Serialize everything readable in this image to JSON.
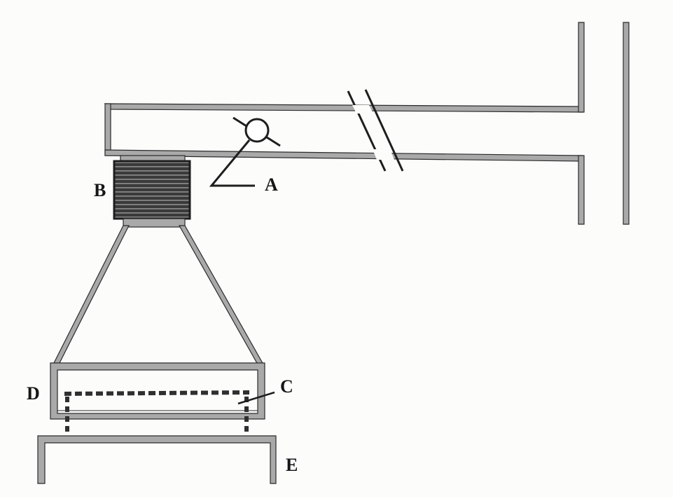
{
  "labels": {
    "a": "A",
    "b": "B",
    "c": "C",
    "d": "D",
    "e": "E"
  },
  "colors": {
    "wall_fill": "#a9a9a9",
    "outline": "#2b2b2b",
    "coil": "#2f2f2f",
    "dashed": "#2f2f2f",
    "background": "#fcfcfb"
  }
}
